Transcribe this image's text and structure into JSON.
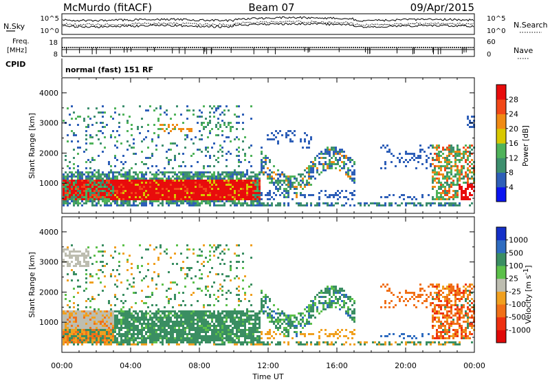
{
  "header": {
    "station": "McMurdo (fitACF)",
    "beam": "Beam 07",
    "date": "09/Apr/2015"
  },
  "noise_panel": {
    "left_label": "N.Sky",
    "right_label": "N.Search",
    "left_ticks": [
      "10^5",
      "10^0"
    ],
    "right_ticks": [
      "10^5",
      "10^0"
    ]
  },
  "freq_panel": {
    "left_label_line1": "Freq.",
    "left_label_line2": "[MHz]",
    "left_ticks": [
      "18",
      "8"
    ],
    "right_ticks": [
      "60",
      "0"
    ],
    "right_label": "Nave"
  },
  "cpid": {
    "label": "CPID",
    "value": "normal (fast) 151 RF"
  },
  "chart_data": [
    {
      "type": "heatmap",
      "quantity": "Power",
      "ylabel": "Slant Range [km]",
      "yticks": [
        "1000",
        "2000",
        "3000",
        "4000"
      ],
      "ylim": [
        0,
        4500
      ],
      "colorbar_label": "Power [dB]",
      "colorbar_ticks": [
        "4",
        "8",
        "12",
        "16",
        "20",
        "24",
        "28"
      ],
      "colorbar_range": [
        0,
        30
      ],
      "colors": [
        "#0a14f0",
        "#2e5fb8",
        "#3d8f6e",
        "#4fb35a",
        "#d8c800",
        "#f08a14",
        "#f24818",
        "#e80c0c"
      ]
    },
    {
      "type": "heatmap",
      "quantity": "Velocity",
      "ylabel": "Slant Range [km]",
      "yticks": [
        "1000",
        "2000",
        "3000",
        "4000"
      ],
      "ylim": [
        0,
        4500
      ],
      "colorbar_label": "Velocity [m s",
      "colorbar_unit_sup": "-1",
      "colorbar_ticks": [
        "1000",
        "500",
        "100",
        "25",
        "-25",
        "-100",
        "-500",
        "-1000"
      ],
      "colors": [
        "#1430c8",
        "#2f6cc0",
        "#3a8e62",
        "#5cc04a",
        "#bdbdb0",
        "#f0a020",
        "#f07018",
        "#ee3010",
        "#e00808"
      ]
    }
  ],
  "xaxis": {
    "label": "Time UT",
    "ticks": [
      "00:00",
      "04:00",
      "08:00",
      "12:00",
      "16:00",
      "20:00",
      "00:00"
    ]
  }
}
